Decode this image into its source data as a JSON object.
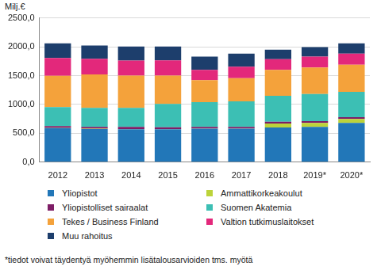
{
  "chart_data": {
    "type": "bar",
    "stacked": true,
    "grid": true,
    "legend": "bottom",
    "y_label": "Milj.€",
    "annotations": [
      "*tiedot voivat täydentyä myöhemmin lisätalousarvioiden tms. myötä"
    ],
    "categories": [
      "2012",
      "2013",
      "2014",
      "2015",
      "2016",
      "2017",
      "2018",
      "2019*",
      "2020*"
    ],
    "series": [
      {
        "name": "Yliopistot",
        "color": "#2277b8",
        "values": [
          590,
          575,
          570,
          570,
          580,
          580,
          600,
          610,
          680
        ]
      },
      {
        "name": "Ammattikorkeakoulut",
        "color": "#bcd33a",
        "values": [
          5,
          5,
          5,
          5,
          5,
          5,
          70,
          70,
          70
        ]
      },
      {
        "name": "Yliopistolliset sairaalat",
        "color": "#7e1d66",
        "values": [
          30,
          30,
          35,
          30,
          25,
          25,
          30,
          30,
          30
        ]
      },
      {
        "name": "Suomen Akatemia",
        "color": "#3cbfb4",
        "values": [
          330,
          330,
          330,
          405,
          430,
          445,
          450,
          470,
          440
        ]
      },
      {
        "name": "Tekes / Business Finland",
        "color": "#f4a23b",
        "values": [
          540,
          580,
          560,
          490,
          380,
          400,
          450,
          460,
          470
        ]
      },
      {
        "name": "Valtion tutkimuslaitokset",
        "color": "#e3287b",
        "values": [
          310,
          270,
          260,
          265,
          180,
          200,
          185,
          190,
          190
        ]
      },
      {
        "name": "Muu rahoitus",
        "color": "#1d3e6c",
        "values": [
          255,
          230,
          245,
          240,
          230,
          225,
          165,
          165,
          180
        ]
      }
    ],
    "ylim": [
      0,
      2500
    ],
    "yticks": [
      {
        "value": 0,
        "label": "0,0"
      },
      {
        "value": 500,
        "label": "500,0"
      },
      {
        "value": 1000,
        "label": "1000,0"
      },
      {
        "value": 1500,
        "label": "1500,0"
      },
      {
        "value": 2000,
        "label": "2000,0"
      },
      {
        "value": 2500,
        "label": "2500,0"
      }
    ]
  }
}
